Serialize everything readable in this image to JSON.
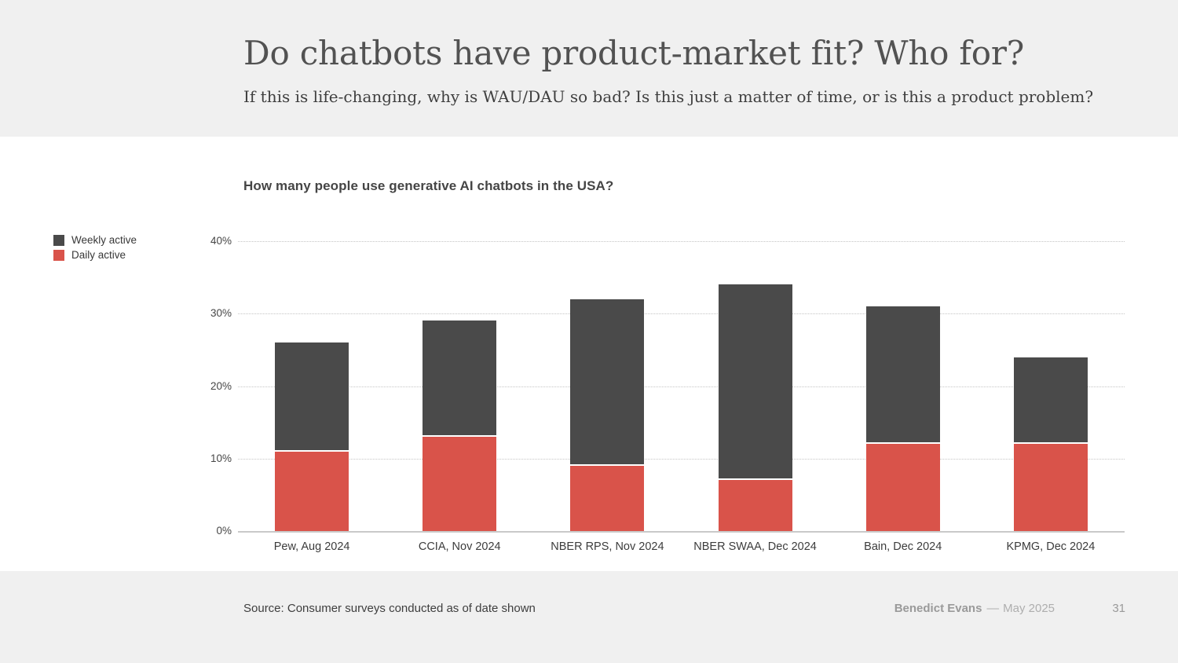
{
  "slide": {
    "title": "Do chatbots have product-market fit? Who for?",
    "subtitle": "If this is life-changing, why is WAU/DAU so bad? Is this just a matter of time, or is this a product problem?"
  },
  "chart": {
    "title": "How many people use generative AI chatbots in the USA?"
  },
  "legend": [
    {
      "label": "Weekly active",
      "color": "#4a4a4a"
    },
    {
      "label": "Daily active",
      "color": "#d9534a"
    }
  ],
  "chart_data": {
    "type": "bar",
    "stacked": true,
    "title": "How many people use generative AI chatbots in the USA?",
    "categories": [
      "Pew, Aug 2024",
      "CCIA, Nov 2024",
      "NBER RPS, Nov 2024",
      "NBER SWAA, Dec 2024",
      "Bain, Dec 2024",
      "KPMG, Dec 2024"
    ],
    "series": [
      {
        "name": "Daily active",
        "color": "#d9534a",
        "values": [
          11,
          13,
          9,
          7,
          12,
          12
        ]
      },
      {
        "name": "Weekly active (segment above daily)",
        "color": "#4a4a4a",
        "values": [
          15,
          16,
          23,
          27,
          19,
          12
        ]
      }
    ],
    "weekly_active_totals": [
      26,
      29,
      32,
      34,
      31,
      24
    ],
    "xlabel": "",
    "ylabel": "",
    "ylim": [
      0,
      40
    ],
    "yticks": [
      "0%",
      "10%",
      "20%",
      "30%",
      "40%"
    ],
    "grid": "horizontal dotted",
    "legend_position": "left"
  },
  "footer": {
    "source": "Source: Consumer surveys conducted as of date shown",
    "author": "Benedict Evans",
    "separator": "––",
    "date": "May 2025",
    "page": "31"
  }
}
